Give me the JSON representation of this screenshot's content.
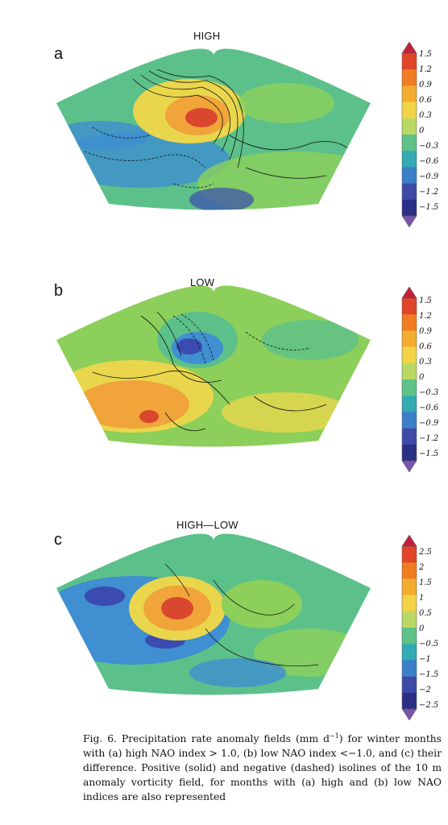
{
  "panels": [
    {
      "letter": "a",
      "title": "HIGH",
      "ticks": [
        "1.5",
        "1.2",
        "0.9",
        "0.6",
        "0.3",
        "0",
        "−0.3",
        "−0.6",
        "−0.9",
        "−1.2",
        "−1.5"
      ]
    },
    {
      "letter": "b",
      "title": "LOW",
      "ticks": [
        "1.5",
        "1.2",
        "0.9",
        "0.6",
        "0.3",
        "0",
        "−0.3",
        "−0.6",
        "−0.9",
        "−1.2",
        "−1.5"
      ]
    },
    {
      "letter": "c",
      "title": "HIGH—LOW",
      "ticks": [
        "2.5",
        "2",
        "1.5",
        "1",
        "0.5",
        "0",
        "−0.5",
        "−1",
        "−1.5",
        "−2",
        "−2.5"
      ]
    }
  ],
  "colorbar_colors": [
    "#c2203b",
    "#e0452a",
    "#f07c22",
    "#f3ac2e",
    "#f2d346",
    "#b9d964",
    "#5fc389",
    "#33a9b3",
    "#3a7fc8",
    "#3d4aa8",
    "#2b2f86",
    "#7a55a8"
  ],
  "map_colors": {
    "ocean_base": "#5cc08a",
    "green": "#8ccf5a",
    "yellow": "#e9d64c",
    "orange": "#f0a43a",
    "red": "#d9472e",
    "blue": "#3f8fd1",
    "dark_blue": "#3b4bb0"
  },
  "caption": {
    "part1": "Fig. 6. Precipitation rate anomaly fields (mm d",
    "sup": "−1",
    "part2": ") for winter months with (a) high NAO index > 1.0, (b) low NAO index <−1.0, and (c) their difference. Positive (solid) and negative (dashed) isolines of the 10 m anomaly vorticity field, for months with (a) high and (b) low NAO indices are also represented"
  }
}
